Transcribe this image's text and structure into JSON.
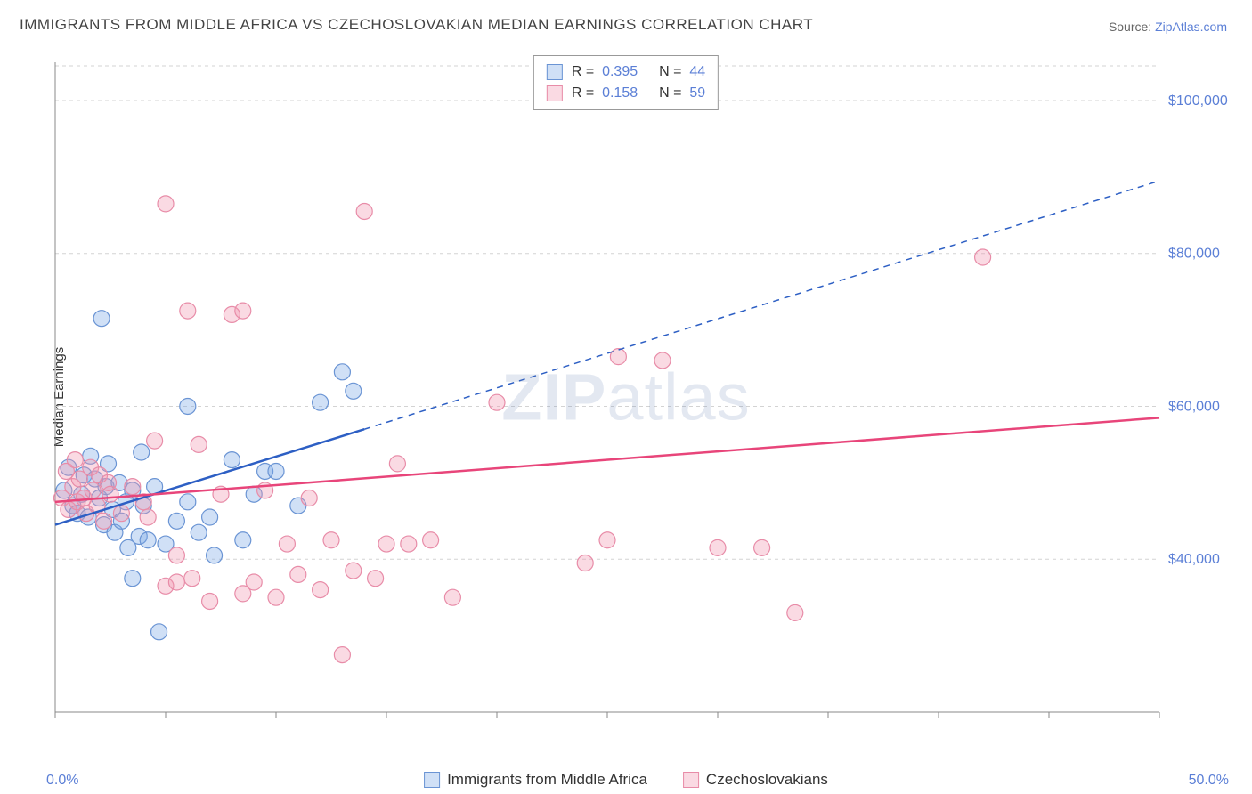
{
  "title": "IMMIGRANTS FROM MIDDLE AFRICA VS CZECHOSLOVAKIAN MEDIAN EARNINGS CORRELATION CHART",
  "source_label": "Source:",
  "source_value": "ZipAtlas.com",
  "ylabel": "Median Earnings",
  "watermark": {
    "bold": "ZIP",
    "rest": "atlas"
  },
  "chart": {
    "type": "scatter",
    "xlim": [
      0,
      50
    ],
    "ylim": [
      20000,
      105000
    ],
    "x_tick_min_label": "0.0%",
    "x_tick_max_label": "50.0%",
    "x_ticks": [
      0,
      5,
      10,
      15,
      20,
      25,
      30,
      35,
      40,
      45,
      50
    ],
    "y_ticks": [
      40000,
      60000,
      80000,
      100000
    ],
    "y_tick_labels": [
      "$40,000",
      "$60,000",
      "$80,000",
      "$100,000"
    ],
    "grid_color": "#d3d3d3",
    "axis_color": "#888888",
    "background_color": "#ffffff",
    "marker_radius": 9,
    "marker_stroke_width": 1.2,
    "trend_line_width": 2.5,
    "tick_font_size": 16,
    "tick_color": "#5b7fd6"
  },
  "series": [
    {
      "key": "middle_africa",
      "label": "Immigrants from Middle Africa",
      "color_fill": "rgba(120,165,230,0.35)",
      "color_stroke": "#6a94d4",
      "trend_color": "#2d5fc4",
      "r_value": "0.395",
      "n_value": "44",
      "trend": {
        "x1": 0,
        "y1": 44500,
        "x2": 14,
        "y2": 57000,
        "ext_x2": 50,
        "ext_y2": 89500
      },
      "points": [
        [
          0.4,
          49000
        ],
        [
          0.6,
          52000
        ],
        [
          0.8,
          47000
        ],
        [
          1.0,
          46000
        ],
        [
          1.2,
          48500
        ],
        [
          1.3,
          51000
        ],
        [
          1.5,
          45500
        ],
        [
          1.6,
          53500
        ],
        [
          1.8,
          50500
        ],
        [
          2.0,
          48000
        ],
        [
          2.1,
          71500
        ],
        [
          2.2,
          44500
        ],
        [
          2.3,
          49500
        ],
        [
          2.4,
          52500
        ],
        [
          2.6,
          46500
        ],
        [
          2.7,
          43500
        ],
        [
          2.9,
          50000
        ],
        [
          3.0,
          45000
        ],
        [
          3.2,
          47500
        ],
        [
          3.3,
          41500
        ],
        [
          3.5,
          49000
        ],
        [
          3.5,
          37500
        ],
        [
          3.8,
          43000
        ],
        [
          3.9,
          54000
        ],
        [
          4.0,
          47000
        ],
        [
          4.2,
          42500
        ],
        [
          4.5,
          49500
        ],
        [
          4.7,
          30500
        ],
        [
          5.0,
          42000
        ],
        [
          5.5,
          45000
        ],
        [
          6.0,
          60000
        ],
        [
          6.0,
          47500
        ],
        [
          6.5,
          43500
        ],
        [
          7.0,
          45500
        ],
        [
          7.2,
          40500
        ],
        [
          8.0,
          53000
        ],
        [
          8.5,
          42500
        ],
        [
          9.0,
          48500
        ],
        [
          9.5,
          51500
        ],
        [
          10.0,
          51500
        ],
        [
          11.0,
          47000
        ],
        [
          12.0,
          60500
        ],
        [
          13.0,
          64500
        ],
        [
          13.5,
          62000
        ]
      ]
    },
    {
      "key": "czechoslovakian",
      "label": "Czechoslovakians",
      "color_fill": "rgba(240,150,175,0.35)",
      "color_stroke": "#e88ca8",
      "trend_color": "#e8457a",
      "r_value": "0.158",
      "n_value": "59",
      "trend": {
        "x1": 0,
        "y1": 47500,
        "x2": 50,
        "y2": 58500
      },
      "points": [
        [
          0.3,
          48000
        ],
        [
          0.5,
          51500
        ],
        [
          0.6,
          46500
        ],
        [
          0.8,
          49500
        ],
        [
          0.9,
          53000
        ],
        [
          1.0,
          47500
        ],
        [
          1.1,
          50500
        ],
        [
          1.3,
          48000
        ],
        [
          1.4,
          46000
        ],
        [
          1.6,
          52000
        ],
        [
          1.7,
          49000
        ],
        [
          1.9,
          47000
        ],
        [
          2.0,
          51000
        ],
        [
          2.2,
          45000
        ],
        [
          2.4,
          50000
        ],
        [
          2.5,
          48500
        ],
        [
          3.0,
          46000
        ],
        [
          3.5,
          49500
        ],
        [
          4.0,
          47500
        ],
        [
          4.2,
          45500
        ],
        [
          4.5,
          55500
        ],
        [
          5.0,
          86500
        ],
        [
          5.0,
          36500
        ],
        [
          5.5,
          37000
        ],
        [
          5.5,
          40500
        ],
        [
          6.0,
          72500
        ],
        [
          6.2,
          37500
        ],
        [
          6.5,
          55000
        ],
        [
          7.0,
          34500
        ],
        [
          7.5,
          48500
        ],
        [
          8.0,
          72000
        ],
        [
          8.5,
          35500
        ],
        [
          8.5,
          72500
        ],
        [
          9.0,
          37000
        ],
        [
          9.5,
          49000
        ],
        [
          10.0,
          35000
        ],
        [
          10.5,
          42000
        ],
        [
          11.0,
          38000
        ],
        [
          11.5,
          48000
        ],
        [
          12.0,
          36000
        ],
        [
          12.5,
          42500
        ],
        [
          13.0,
          27500
        ],
        [
          13.5,
          38500
        ],
        [
          14.0,
          85500
        ],
        [
          14.5,
          37500
        ],
        [
          15.0,
          42000
        ],
        [
          15.5,
          52500
        ],
        [
          16.0,
          42000
        ],
        [
          17.0,
          42500
        ],
        [
          20.0,
          60500
        ],
        [
          24.0,
          39500
        ],
        [
          25.5,
          66500
        ],
        [
          27.5,
          66000
        ],
        [
          30.0,
          41500
        ],
        [
          32.0,
          41500
        ],
        [
          33.5,
          33000
        ],
        [
          42.0,
          79500
        ],
        [
          25.0,
          42500
        ],
        [
          18.0,
          35000
        ]
      ]
    }
  ],
  "stat_legend": {
    "r_label": "R  =",
    "n_label": "N  ="
  }
}
